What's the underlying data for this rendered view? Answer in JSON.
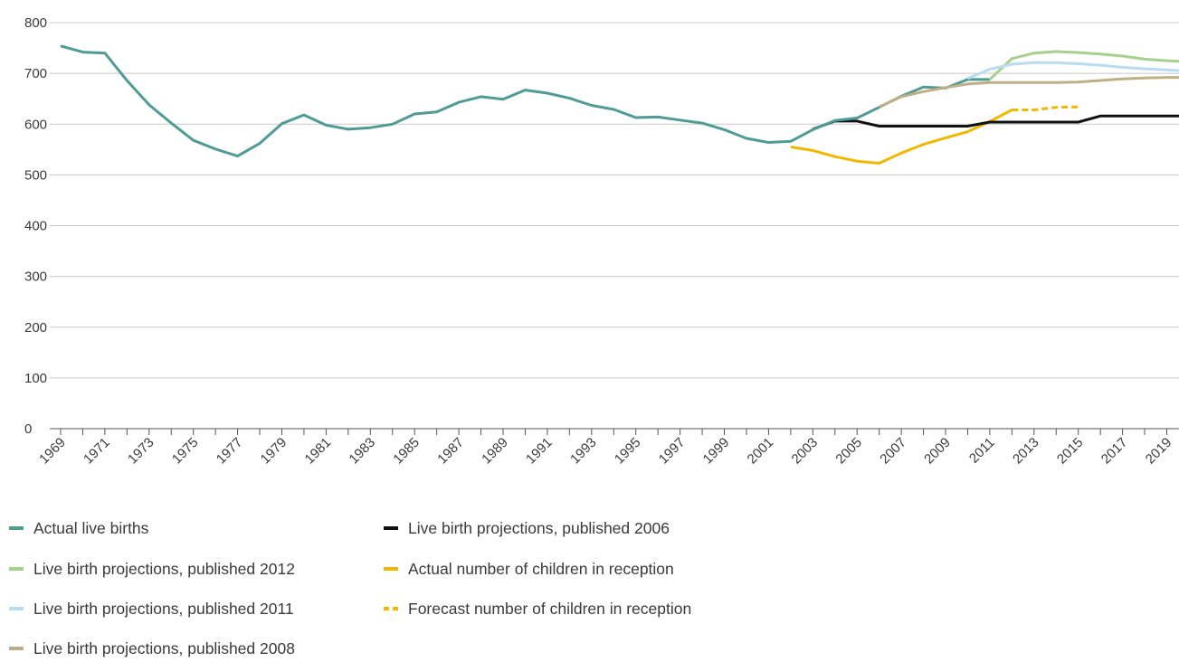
{
  "chart_data": {
    "type": "line",
    "title": "",
    "xlabel": "",
    "ylabel": "",
    "ylim": [
      0,
      800
    ],
    "yticks": [
      "0",
      "100",
      "200",
      "300",
      "400",
      "500",
      "600",
      "700",
      "800"
    ],
    "xlim": [
      1969,
      2020
    ],
    "xtick_labels": [
      "1969",
      "1971",
      "1973",
      "1975",
      "1977",
      "1979",
      "1981",
      "1983",
      "1985",
      "1987",
      "1989",
      "1991",
      "1993",
      "1995",
      "1997",
      "1999",
      "2001",
      "2003",
      "2005",
      "2007",
      "2009",
      "2011",
      "2013",
      "2015",
      "2017",
      "2019"
    ],
    "grid": "horizontal",
    "legend_position": "bottom",
    "series": [
      {
        "name": "Actual live births",
        "color": "#4e9c95",
        "style": "solid",
        "x": [
          1969,
          1970,
          1971,
          1972,
          1973,
          1974,
          1975,
          1976,
          1977,
          1978,
          1979,
          1980,
          1981,
          1982,
          1983,
          1984,
          1985,
          1986,
          1987,
          1988,
          1989,
          1990,
          1991,
          1992,
          1993,
          1994,
          1995,
          1996,
          1997,
          1998,
          1999,
          2000,
          2001,
          2002,
          2003,
          2004,
          2005,
          2006,
          2007,
          2008,
          2009,
          2010,
          2011
        ],
        "values": [
          754,
          742,
          740,
          686,
          638,
          602,
          568,
          551,
          537,
          562,
          601,
          618,
          598,
          590,
          593,
          600,
          620,
          624,
          643,
          654,
          649,
          667,
          661,
          651,
          637,
          629,
          613,
          614,
          608,
          602,
          589,
          572,
          564,
          566,
          589,
          607,
          612,
          633,
          655,
          673,
          671,
          688,
          688
        ]
      },
      {
        "name": "Live birth projections, published 2006",
        "color": "#111111",
        "style": "solid",
        "x": [
          2003,
          2004,
          2005,
          2006,
          2007,
          2008,
          2009,
          2010,
          2011,
          2012,
          2013,
          2014,
          2015,
          2016,
          2017,
          2018,
          2019,
          2020
        ],
        "values": [
          590,
          606,
          606,
          596,
          596,
          596,
          596,
          596,
          604,
          604,
          604,
          604,
          604,
          616,
          616,
          616,
          616,
          616
        ]
      },
      {
        "name": "Live birth projections, published 2012",
        "color": "#a8d08d",
        "style": "solid",
        "x": [
          2011,
          2012,
          2013,
          2014,
          2015,
          2016,
          2017,
          2018,
          2019,
          2020
        ],
        "values": [
          688,
          729,
          740,
          743,
          741,
          738,
          734,
          728,
          725,
          723
        ]
      },
      {
        "name": "Actual number of children in reception",
        "color": "#f2b800",
        "style": "solid",
        "x": [
          2002,
          2003,
          2004,
          2005,
          2006,
          2007,
          2008,
          2009,
          2010,
          2011,
          2012
        ],
        "values": [
          555,
          548,
          536,
          527,
          523,
          543,
          560,
          573,
          585,
          605,
          628
        ]
      },
      {
        "name": "Live birth projections, published 2011",
        "color": "#b9dcf2",
        "style": "solid",
        "x": [
          2010,
          2011,
          2012,
          2013,
          2014,
          2015,
          2016,
          2017,
          2018,
          2019,
          2020
        ],
        "values": [
          690,
          708,
          718,
          721,
          721,
          719,
          716,
          712,
          709,
          707,
          704
        ]
      },
      {
        "name": "Forecast number of children in reception",
        "color": "#f2b800",
        "style": "dashed",
        "x": [
          2012,
          2013,
          2014,
          2015
        ],
        "values": [
          628,
          628,
          633,
          634
        ]
      },
      {
        "name": "Live birth projections, published 2008",
        "color": "#c2ae85",
        "style": "solid",
        "x": [
          2006,
          2007,
          2008,
          2009,
          2010,
          2011,
          2012,
          2013,
          2014,
          2015,
          2016,
          2017,
          2018,
          2019,
          2020
        ],
        "values": [
          634,
          654,
          664,
          672,
          679,
          682,
          682,
          682,
          682,
          683,
          686,
          689,
          691,
          692,
          692
        ]
      }
    ]
  }
}
